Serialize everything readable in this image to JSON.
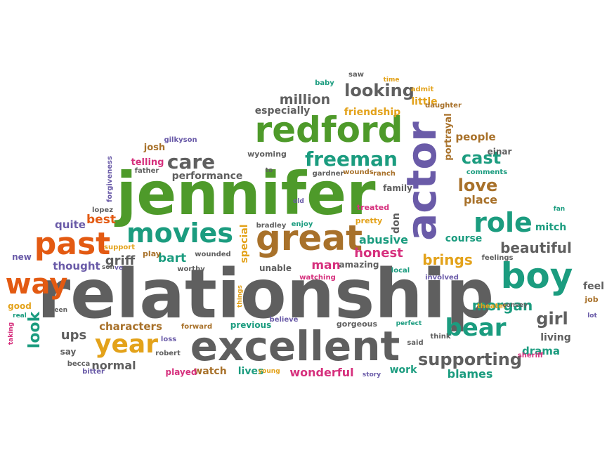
{
  "palette": {
    "gray": "#5f5f5f",
    "green": "#4e9a2a",
    "teal": "#1b9c7f",
    "orange": "#e35a12",
    "gold": "#e3a21a",
    "brown": "#a8712a",
    "purple": "#6a5ba8",
    "pink": "#d6307d",
    "blue": "#3471a8",
    "ltgray": "#8a8a8a"
  },
  "words": [
    {
      "text": "relationship",
      "color": "gray"
    },
    {
      "text": "jennifer",
      "color": "green"
    },
    {
      "text": "excellent",
      "color": "gray"
    },
    {
      "text": "actor",
      "color": "purple"
    },
    {
      "text": "redford",
      "color": "green"
    },
    {
      "text": "boy",
      "color": "teal"
    },
    {
      "text": "great",
      "color": "brown"
    },
    {
      "text": "past",
      "color": "orange"
    },
    {
      "text": "movies",
      "color": "teal"
    },
    {
      "text": "way",
      "color": "orange"
    },
    {
      "text": "year",
      "color": "gold"
    },
    {
      "text": "role",
      "color": "teal"
    },
    {
      "text": "bear",
      "color": "teal"
    },
    {
      "text": "care",
      "color": "gray"
    },
    {
      "text": "freeman",
      "color": "teal"
    },
    {
      "text": "supporting",
      "color": "gray"
    },
    {
      "text": "looking",
      "color": "gray"
    },
    {
      "text": "honest",
      "color": "pink"
    },
    {
      "text": "love",
      "color": "brown"
    },
    {
      "text": "cast",
      "color": "teal"
    },
    {
      "text": "beautiful",
      "color": "gray"
    },
    {
      "text": "girl",
      "color": "gray"
    },
    {
      "text": "morgan",
      "color": "teal"
    },
    {
      "text": "look",
      "color": "teal"
    },
    {
      "text": "million",
      "color": "gray"
    },
    {
      "text": "abusive",
      "color": "teal"
    },
    {
      "text": "characters",
      "color": "brown"
    },
    {
      "text": "brings",
      "color": "gold"
    },
    {
      "text": "ups",
      "color": "gray"
    },
    {
      "text": "normal",
      "color": "gray"
    },
    {
      "text": "place",
      "color": "brown"
    },
    {
      "text": "friendship",
      "color": "gold"
    },
    {
      "text": "especially",
      "color": "gray"
    },
    {
      "text": "griff",
      "color": "gray"
    },
    {
      "text": "best",
      "color": "orange"
    },
    {
      "text": "thought",
      "color": "purple"
    },
    {
      "text": "quite",
      "color": "purple"
    },
    {
      "text": "bart",
      "color": "teal"
    },
    {
      "text": "wonderful",
      "color": "pink"
    },
    {
      "text": "blames",
      "color": "teal"
    },
    {
      "text": "performance",
      "color": "gray"
    },
    {
      "text": "course",
      "color": "teal"
    },
    {
      "text": "living",
      "color": "gray"
    },
    {
      "text": "drama",
      "color": "teal"
    },
    {
      "text": "watch",
      "color": "brown"
    },
    {
      "text": "lives",
      "color": "teal"
    },
    {
      "text": "work",
      "color": "teal"
    },
    {
      "text": "people",
      "color": "brown"
    },
    {
      "text": "portrayal",
      "color": "brown"
    },
    {
      "text": "man",
      "color": "pink"
    },
    {
      "text": "amazing",
      "color": "gray"
    },
    {
      "text": "don",
      "color": "gray"
    },
    {
      "text": "gorgeous",
      "color": "gray"
    },
    {
      "text": "previous",
      "color": "teal"
    },
    {
      "text": "little",
      "color": "gold"
    },
    {
      "text": "telling",
      "color": "pink"
    },
    {
      "text": "josh",
      "color": "brown"
    },
    {
      "text": "wyoming",
      "color": "gray"
    },
    {
      "text": "mitch",
      "color": "teal"
    },
    {
      "text": "unable",
      "color": "gray"
    },
    {
      "text": "special",
      "color": "gold"
    },
    {
      "text": "einar",
      "color": "gray"
    },
    {
      "text": "family",
      "color": "gray"
    },
    {
      "text": "played",
      "color": "pink"
    },
    {
      "text": "good",
      "color": "gold"
    },
    {
      "text": "say",
      "color": "gray"
    },
    {
      "text": "new",
      "color": "purple"
    },
    {
      "text": "feel",
      "color": "gray"
    },
    {
      "text": "job",
      "color": "brown"
    },
    {
      "text": "pretty",
      "color": "gold"
    },
    {
      "text": "treated",
      "color": "pink"
    },
    {
      "text": "gardner",
      "color": "gray"
    },
    {
      "text": "wounds",
      "color": "brown"
    },
    {
      "text": "ranch",
      "color": "brown"
    },
    {
      "text": "comments",
      "color": "teal"
    },
    {
      "text": "lopez",
      "color": "gray"
    },
    {
      "text": "fan",
      "color": "teal"
    },
    {
      "text": "watching",
      "color": "pink"
    },
    {
      "text": "involved",
      "color": "purple"
    },
    {
      "text": "feelings",
      "color": "gray"
    },
    {
      "text": "play",
      "color": "brown"
    },
    {
      "text": "wounded",
      "color": "gray"
    },
    {
      "text": "worthy",
      "color": "gray"
    },
    {
      "text": "bradley",
      "color": "gray"
    },
    {
      "text": "enjoy",
      "color": "teal"
    },
    {
      "text": "support",
      "color": "gold"
    },
    {
      "text": "son",
      "color": "gray"
    },
    {
      "text": "ve",
      "color": "purple"
    },
    {
      "text": "local",
      "color": "teal"
    },
    {
      "text": "things",
      "color": "gold"
    },
    {
      "text": "believe",
      "color": "purple"
    },
    {
      "text": "perfect",
      "color": "teal"
    },
    {
      "text": "think",
      "color": "gray"
    },
    {
      "text": "said",
      "color": "gray"
    },
    {
      "text": "theater",
      "color": "gold"
    },
    {
      "text": "convey",
      "color": "gray"
    },
    {
      "text": "sheriff",
      "color": "pink"
    },
    {
      "text": "lot",
      "color": "purple"
    },
    {
      "text": "real",
      "color": "teal"
    },
    {
      "text": "seen",
      "color": "gray"
    },
    {
      "text": "taking",
      "color": "pink"
    },
    {
      "text": "forward",
      "color": "brown"
    },
    {
      "text": "loss",
      "color": "purple"
    },
    {
      "text": "robert",
      "color": "gray"
    },
    {
      "text": "becca",
      "color": "gray"
    },
    {
      "text": "bitter",
      "color": "purple"
    },
    {
      "text": "young",
      "color": "gold"
    },
    {
      "text": "story",
      "color": "purple"
    },
    {
      "text": "baby",
      "color": "teal"
    },
    {
      "text": "saw",
      "color": "gray"
    },
    {
      "text": "time",
      "color": "gold"
    },
    {
      "text": "admit",
      "color": "gold"
    },
    {
      "text": "daughter",
      "color": "brown"
    },
    {
      "text": "gilkyson",
      "color": "purple"
    },
    {
      "text": "father",
      "color": "gray"
    },
    {
      "text": "forgiveness",
      "color": "purple"
    },
    {
      "text": "to",
      "color": "gray"
    },
    {
      "text": "old",
      "color": "purple"
    }
  ]
}
